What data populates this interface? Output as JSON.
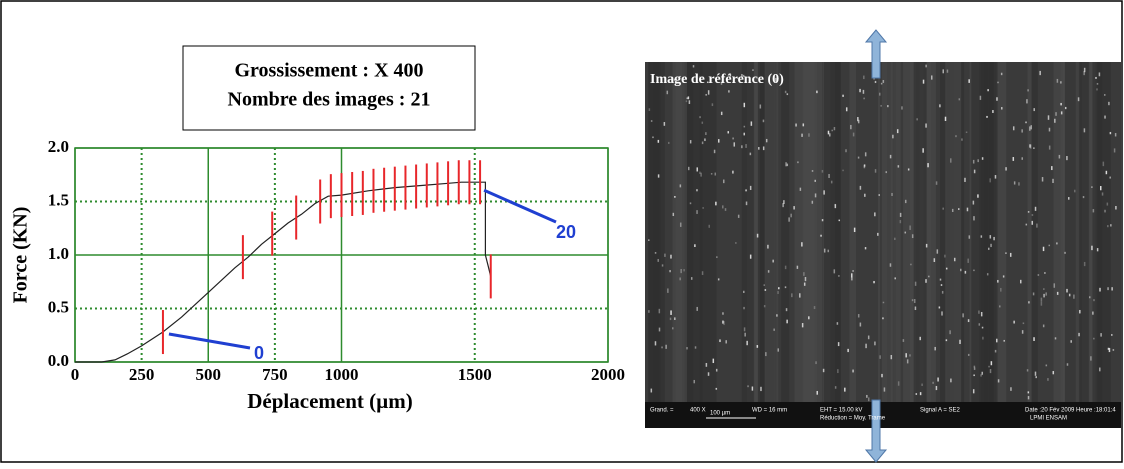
{
  "chart_data": {
    "type": "line",
    "info_lines": [
      "Grossissement : X 400",
      "Nombre des images : 21"
    ],
    "ylabel": "Force (KN)",
    "xlabel": "Déplacement (µm)",
    "xlim": [
      0,
      2000
    ],
    "xticks": [
      0,
      250,
      500,
      750,
      1000,
      1500,
      2000
    ],
    "ylim": [
      0,
      2
    ],
    "yticks": [
      {
        "value": 0,
        "label": "0.0"
      },
      0.5,
      {
        "value": 1,
        "label": "1.0"
      },
      1.5,
      {
        "value": 2,
        "label": "2.0"
      }
    ],
    "grid": true,
    "color": "#222222",
    "x": [
      0,
      100,
      150,
      200,
      250,
      330,
      400,
      500,
      600,
      650,
      700,
      750,
      800,
      850,
      900,
      950,
      1000,
      1100,
      1200,
      1300,
      1400,
      1450,
      1500,
      1540,
      1540,
      1550,
      1560
    ],
    "values": [
      0,
      0,
      0.02,
      0.08,
      0.15,
      0.28,
      0.42,
      0.65,
      0.88,
      0.98,
      1.1,
      1.2,
      1.3,
      1.38,
      1.48,
      1.55,
      1.56,
      1.6,
      1.63,
      1.65,
      1.67,
      1.68,
      1.68,
      1.68,
      1.0,
      0.9,
      0.8
    ],
    "markers": {
      "color": "#e8262a",
      "x": [
        330,
        630,
        740,
        830,
        920,
        960,
        1000,
        1040,
        1080,
        1120,
        1160,
        1200,
        1240,
        1280,
        1320,
        1360,
        1400,
        1440,
        1480,
        1520,
        1560
      ],
      "values": [
        0.28,
        0.98,
        1.2,
        1.35,
        1.5,
        1.55,
        1.56,
        1.57,
        1.58,
        1.6,
        1.61,
        1.62,
        1.63,
        1.64,
        1.65,
        1.66,
        1.67,
        1.68,
        1.68,
        1.68,
        0.8
      ]
    },
    "callouts": [
      "0",
      "20"
    ]
  },
  "image": {
    "label": "Image de référence (0)",
    "footer": [
      "Grand. =",
      "400 X",
      "100 µm",
      "WD =  16 mm",
      "EHT = 15.00 kV",
      "Signal A = SE2",
      "Date :20 Fév 2009 Heure :18:01:4",
      "Réduction = Moy. Trame",
      "LPMI ENSAM"
    ]
  }
}
